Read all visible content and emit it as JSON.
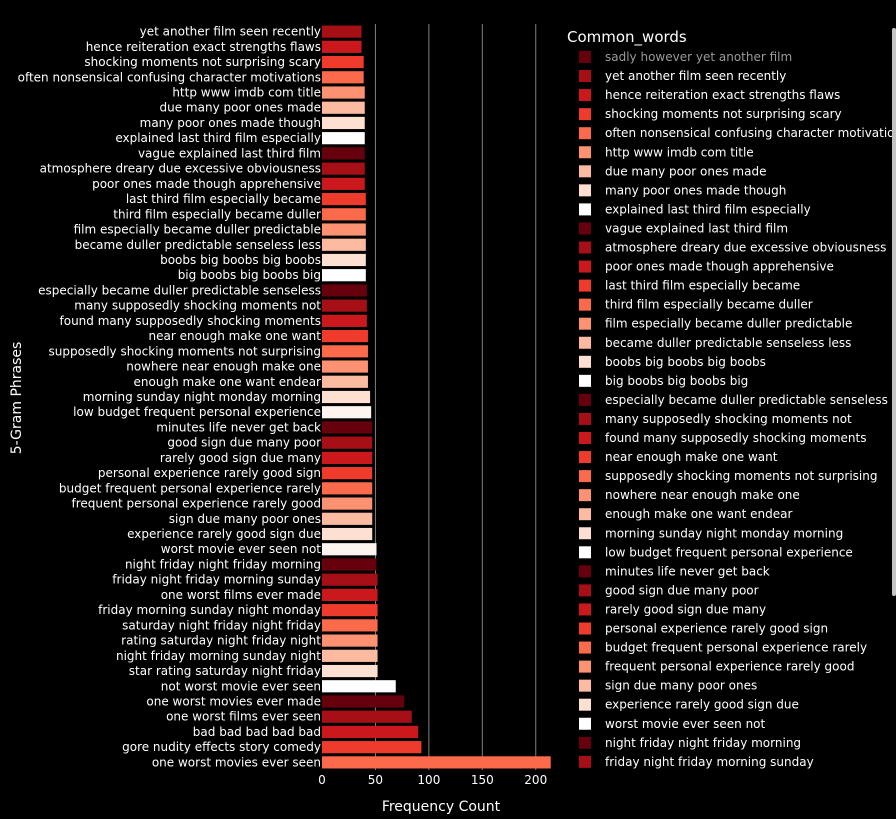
{
  "chart_data": {
    "type": "bar",
    "orientation": "horizontal",
    "xlabel": "Frequency Count",
    "ylabel": "5-Gram Phrases",
    "xlim": [
      0,
      218
    ],
    "xticks": [
      0,
      50,
      100,
      150,
      200
    ],
    "grid": "vertical",
    "legend_title": "Common_words",
    "legend_position": "right",
    "categories": [
      "yet another film seen recently",
      "hence reiteration exact strengths flaws",
      "shocking moments not surprising scary",
      "often nonsensical confusing character motivations",
      "http www imdb com title",
      "due many poor ones made",
      "many poor ones made though",
      "explained last third film especially",
      "vague explained last third film",
      "atmosphere dreary due excessive obviousness",
      "poor ones made though apprehensive",
      "last third film especially became",
      "third film especially became duller",
      "film especially became duller predictable",
      "became duller predictable senseless less",
      "boobs big boobs big boobs",
      "big boobs big boobs big",
      "especially became duller predictable senseless",
      "many supposedly shocking moments not",
      "found many supposedly shocking moments",
      "near enough make one want",
      "supposedly shocking moments not surprising",
      "nowhere near enough make one",
      "enough make one want endear",
      "morning sunday night monday morning",
      "low budget frequent personal experience",
      "minutes life never get back",
      "good sign due many poor",
      "rarely good sign due many",
      "personal experience rarely good sign",
      "budget frequent personal experience rarely",
      "frequent personal experience rarely good",
      "sign due many poor ones",
      "experience rarely good sign due",
      "worst movie ever seen not",
      "night friday night friday morning",
      "friday night friday morning sunday",
      "one worst films ever made",
      "friday morning sunday night monday",
      "saturday night friday night friday",
      "rating saturday night friday night",
      "night friday morning sunday night",
      "star rating saturday night friday",
      "not worst movie ever seen",
      "one worst movies ever made",
      "one worst films ever seen",
      "bad bad bad bad bad",
      "gore nudity effects story comedy",
      "one worst movies ever seen"
    ],
    "values": [
      37,
      37,
      39,
      39,
      40,
      40,
      40,
      40,
      40,
      40,
      40,
      41,
      41,
      41,
      41,
      41,
      41,
      42,
      42,
      42,
      43,
      43,
      43,
      43,
      45,
      46,
      47,
      47,
      47,
      47,
      47,
      47,
      47,
      47,
      51,
      51,
      52,
      52,
      52,
      52,
      52,
      52,
      52,
      69,
      77,
      84,
      90,
      93,
      214
    ],
    "colors": [
      "#a50f15",
      "#cb181d",
      "#ef3b2c",
      "#fb6a4a",
      "#fc9272",
      "#fcbba1",
      "#fee0d2",
      "#ffffff",
      "#67000d",
      "#a50f15",
      "#cb181d",
      "#ef3b2c",
      "#fb6a4a",
      "#fc9272",
      "#fcbba1",
      "#fee0d2",
      "#ffffff",
      "#67000d",
      "#a50f15",
      "#cb181d",
      "#ef3b2c",
      "#fb6a4a",
      "#fc9272",
      "#fcbba1",
      "#fee0d2",
      "#fff5f0",
      "#67000d",
      "#a50f15",
      "#cb181d",
      "#ef3b2c",
      "#fb6a4a",
      "#fc9272",
      "#fcbba1",
      "#fee0d2",
      "#fff5f0",
      "#67000d",
      "#a50f15",
      "#cb181d",
      "#ef3b2c",
      "#fb6a4a",
      "#fc9272",
      "#fcbba1",
      "#fee0d2",
      "#ffffff",
      "#67000d",
      "#a50f15",
      "#cb181d",
      "#ef3b2c",
      "#fb6a4a"
    ],
    "legend": [
      {
        "label": "sadly however yet another film",
        "color": "#67000d",
        "hidden": true
      },
      {
        "label": "yet another film seen recently",
        "color": "#a50f15"
      },
      {
        "label": "hence reiteration exact strengths flaws",
        "color": "#cb181d"
      },
      {
        "label": "shocking moments not surprising scary",
        "color": "#ef3b2c"
      },
      {
        "label": "often nonsensical confusing character motivations",
        "color": "#fb6a4a"
      },
      {
        "label": "http www imdb com title",
        "color": "#fc9272"
      },
      {
        "label": "due many poor ones made",
        "color": "#fcbba1"
      },
      {
        "label": "many poor ones made though",
        "color": "#fee0d2"
      },
      {
        "label": "explained last third film especially",
        "color": "#ffffff"
      },
      {
        "label": "vague explained last third film",
        "color": "#67000d"
      },
      {
        "label": "atmosphere dreary due excessive obviousness",
        "color": "#a50f15"
      },
      {
        "label": "poor ones made though apprehensive",
        "color": "#cb181d"
      },
      {
        "label": "last third film especially became",
        "color": "#ef3b2c"
      },
      {
        "label": "third film especially became duller",
        "color": "#fb6a4a"
      },
      {
        "label": "film especially became duller predictable",
        "color": "#fc9272"
      },
      {
        "label": "became duller predictable senseless less",
        "color": "#fcbba1"
      },
      {
        "label": "boobs big boobs big boobs",
        "color": "#fee0d2"
      },
      {
        "label": "big boobs big boobs big",
        "color": "#ffffff"
      },
      {
        "label": "especially became duller predictable senseless",
        "color": "#67000d"
      },
      {
        "label": "many supposedly shocking moments not",
        "color": "#a50f15"
      },
      {
        "label": "found many supposedly shocking moments",
        "color": "#cb181d"
      },
      {
        "label": "near enough make one want",
        "color": "#ef3b2c"
      },
      {
        "label": "supposedly shocking moments not surprising",
        "color": "#fb6a4a"
      },
      {
        "label": "nowhere near enough make one",
        "color": "#fc9272"
      },
      {
        "label": "enough make one want endear",
        "color": "#fcbba1"
      },
      {
        "label": "morning sunday night monday morning",
        "color": "#fee0d2"
      },
      {
        "label": "low budget frequent personal experience",
        "color": "#ffffff"
      },
      {
        "label": "minutes life never get back",
        "color": "#67000d"
      },
      {
        "label": "good sign due many poor",
        "color": "#a50f15"
      },
      {
        "label": "rarely good sign due many",
        "color": "#cb181d"
      },
      {
        "label": "personal experience rarely good sign",
        "color": "#ef3b2c"
      },
      {
        "label": "budget frequent personal experience rarely",
        "color": "#fb6a4a"
      },
      {
        "label": "frequent personal experience rarely good",
        "color": "#fc9272"
      },
      {
        "label": "sign due many poor ones",
        "color": "#fcbba1"
      },
      {
        "label": "experience rarely good sign due",
        "color": "#fee0d2"
      },
      {
        "label": "worst movie ever seen not",
        "color": "#ffffff"
      },
      {
        "label": "night friday night friday morning",
        "color": "#67000d"
      },
      {
        "label": "friday night friday morning sunday",
        "color": "#a50f15"
      }
    ]
  }
}
